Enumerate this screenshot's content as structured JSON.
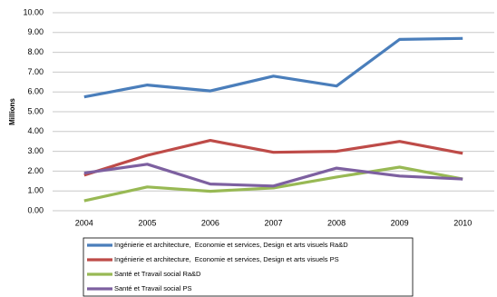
{
  "chart_data": {
    "type": "line",
    "y_label": "Millions",
    "categories": [
      "2004",
      "2005",
      "2006",
      "2007",
      "2008",
      "2009",
      "2010"
    ],
    "series": [
      {
        "name": "Ingénierie et architecture,  Economie et services, Design et arts visuels Ra&D",
        "color": "#4a7ebb",
        "values": [
          5.75,
          6.35,
          6.05,
          6.8,
          6.3,
          8.65,
          8.7
        ]
      },
      {
        "name": "Ingénierie et architecture,  Economie et services, Design et arts visuels PS",
        "color": "#be4b48",
        "values": [
          1.8,
          2.8,
          3.55,
          2.95,
          3.0,
          3.5,
          2.9
        ]
      },
      {
        "name": "Santé et Travail social Ra&D",
        "color": "#98b954",
        "values": [
          0.5,
          1.2,
          0.98,
          1.15,
          1.7,
          2.2,
          1.6
        ]
      },
      {
        "name": "Santé et Travail social PS",
        "color": "#7d60a0",
        "values": [
          1.9,
          2.35,
          1.35,
          1.25,
          2.15,
          1.75,
          1.6
        ]
      }
    ],
    "ylim": [
      0,
      10
    ],
    "yticks": [
      {
        "value": 0,
        "label": "0.00"
      },
      {
        "value": 1,
        "label": "1.00"
      },
      {
        "value": 2,
        "label": "2.00"
      },
      {
        "value": 3,
        "label": "3.00"
      },
      {
        "value": 4,
        "label": "4.00"
      },
      {
        "value": 5,
        "label": "5.00"
      },
      {
        "value": 6,
        "label": "6.00"
      },
      {
        "value": 7,
        "label": "7.00"
      },
      {
        "value": 8,
        "label": "8.00"
      },
      {
        "value": 9,
        "label": "9.00"
      },
      {
        "value": 10,
        "label": "10.00"
      }
    ],
    "grid": true
  }
}
